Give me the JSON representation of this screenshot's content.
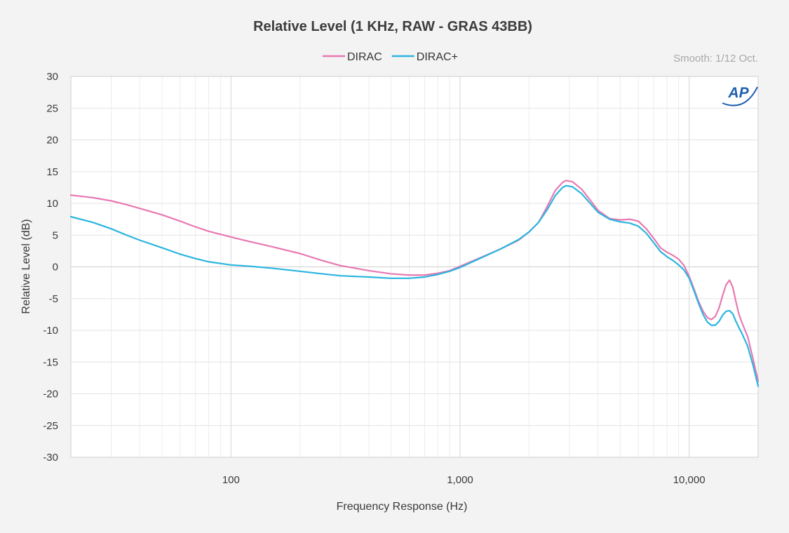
{
  "chart_data": {
    "type": "line",
    "title": "Relative Level (1 KHz, RAW - GRAS 43BB)",
    "xlabel": "Frequency Response (Hz)",
    "ylabel": "Relative Level (dB)",
    "xscale": "log",
    "xlim": [
      20,
      20000
    ],
    "ylim": [
      -30,
      30
    ],
    "x_ticks": [
      {
        "value": 100,
        "label": "100"
      },
      {
        "value": 1000,
        "label": "1,000"
      },
      {
        "value": 10000,
        "label": "10,000"
      }
    ],
    "y_ticks": [
      30,
      25,
      20,
      15,
      10,
      5,
      0,
      -5,
      -10,
      -15,
      -20,
      -25,
      -30
    ],
    "grid": true,
    "legend_position": "top-center",
    "annotation": "Smooth: 1/12 Oct.",
    "logo_text": "AP",
    "series": [
      {
        "name": "DIRAC",
        "color": "#e879b2",
        "points": [
          [
            20,
            11.3
          ],
          [
            25,
            10.9
          ],
          [
            30,
            10.4
          ],
          [
            35,
            9.8
          ],
          [
            40,
            9.2
          ],
          [
            50,
            8.2
          ],
          [
            60,
            7.2
          ],
          [
            70,
            6.3
          ],
          [
            80,
            5.6
          ],
          [
            100,
            4.7
          ],
          [
            120,
            4.0
          ],
          [
            150,
            3.2
          ],
          [
            200,
            2.1
          ],
          [
            250,
            1.0
          ],
          [
            300,
            0.2
          ],
          [
            400,
            -0.6
          ],
          [
            500,
            -1.1
          ],
          [
            600,
            -1.3
          ],
          [
            700,
            -1.3
          ],
          [
            800,
            -1.0
          ],
          [
            900,
            -0.6
          ],
          [
            1000,
            0.1
          ],
          [
            1200,
            1.3
          ],
          [
            1500,
            2.8
          ],
          [
            1800,
            4.2
          ],
          [
            2000,
            5.5
          ],
          [
            2200,
            7.0
          ],
          [
            2400,
            9.5
          ],
          [
            2600,
            12.0
          ],
          [
            2800,
            13.3
          ],
          [
            2900,
            13.6
          ],
          [
            3100,
            13.4
          ],
          [
            3400,
            12.2
          ],
          [
            3700,
            10.5
          ],
          [
            4000,
            8.9
          ],
          [
            4500,
            7.6
          ],
          [
            5000,
            7.4
          ],
          [
            5500,
            7.5
          ],
          [
            6000,
            7.2
          ],
          [
            6500,
            6.0
          ],
          [
            7000,
            4.5
          ],
          [
            7500,
            3.0
          ],
          [
            8000,
            2.3
          ],
          [
            8500,
            1.8
          ],
          [
            9000,
            1.2
          ],
          [
            9500,
            0.2
          ],
          [
            10000,
            -1.5
          ],
          [
            10500,
            -3.5
          ],
          [
            11000,
            -5.5
          ],
          [
            11500,
            -7.0
          ],
          [
            12000,
            -8.0
          ],
          [
            12500,
            -8.3
          ],
          [
            13000,
            -7.8
          ],
          [
            13500,
            -6.5
          ],
          [
            14000,
            -4.5
          ],
          [
            14500,
            -2.8
          ],
          [
            15000,
            -2.1
          ],
          [
            15500,
            -3.2
          ],
          [
            16000,
            -5.5
          ],
          [
            16500,
            -7.5
          ],
          [
            17000,
            -8.8
          ],
          [
            18000,
            -11.0
          ],
          [
            19000,
            -14.5
          ],
          [
            20000,
            -18.0
          ]
        ]
      },
      {
        "name": "DIRAC+",
        "color": "#2cb5e0",
        "points": [
          [
            20,
            7.9
          ],
          [
            25,
            7.0
          ],
          [
            30,
            6.0
          ],
          [
            35,
            5.0
          ],
          [
            40,
            4.2
          ],
          [
            50,
            3.0
          ],
          [
            60,
            2.0
          ],
          [
            70,
            1.3
          ],
          [
            80,
            0.8
          ],
          [
            100,
            0.3
          ],
          [
            120,
            0.1
          ],
          [
            150,
            -0.2
          ],
          [
            200,
            -0.7
          ],
          [
            250,
            -1.1
          ],
          [
            300,
            -1.4
          ],
          [
            400,
            -1.6
          ],
          [
            500,
            -1.8
          ],
          [
            600,
            -1.8
          ],
          [
            700,
            -1.6
          ],
          [
            800,
            -1.2
          ],
          [
            900,
            -0.7
          ],
          [
            1000,
            -0.1
          ],
          [
            1200,
            1.2
          ],
          [
            1500,
            2.8
          ],
          [
            1800,
            4.3
          ],
          [
            2000,
            5.5
          ],
          [
            2200,
            7.0
          ],
          [
            2400,
            9.0
          ],
          [
            2600,
            11.2
          ],
          [
            2800,
            12.5
          ],
          [
            2900,
            12.8
          ],
          [
            3100,
            12.6
          ],
          [
            3400,
            11.5
          ],
          [
            3700,
            10.0
          ],
          [
            4000,
            8.6
          ],
          [
            4500,
            7.5
          ],
          [
            5000,
            7.1
          ],
          [
            5500,
            6.9
          ],
          [
            6000,
            6.4
          ],
          [
            6500,
            5.3
          ],
          [
            7000,
            3.8
          ],
          [
            7500,
            2.4
          ],
          [
            8000,
            1.6
          ],
          [
            8500,
            1.0
          ],
          [
            9000,
            0.3
          ],
          [
            9500,
            -0.5
          ],
          [
            10000,
            -1.8
          ],
          [
            10500,
            -3.8
          ],
          [
            11000,
            -5.8
          ],
          [
            11500,
            -7.5
          ],
          [
            12000,
            -8.7
          ],
          [
            12500,
            -9.2
          ],
          [
            13000,
            -9.2
          ],
          [
            13500,
            -8.6
          ],
          [
            14000,
            -7.6
          ],
          [
            14500,
            -7.0
          ],
          [
            15000,
            -6.9
          ],
          [
            15500,
            -7.4
          ],
          [
            16000,
            -8.6
          ],
          [
            16500,
            -9.6
          ],
          [
            17000,
            -10.5
          ],
          [
            18000,
            -12.5
          ],
          [
            19000,
            -15.5
          ],
          [
            20000,
            -18.8
          ]
        ]
      }
    ]
  }
}
